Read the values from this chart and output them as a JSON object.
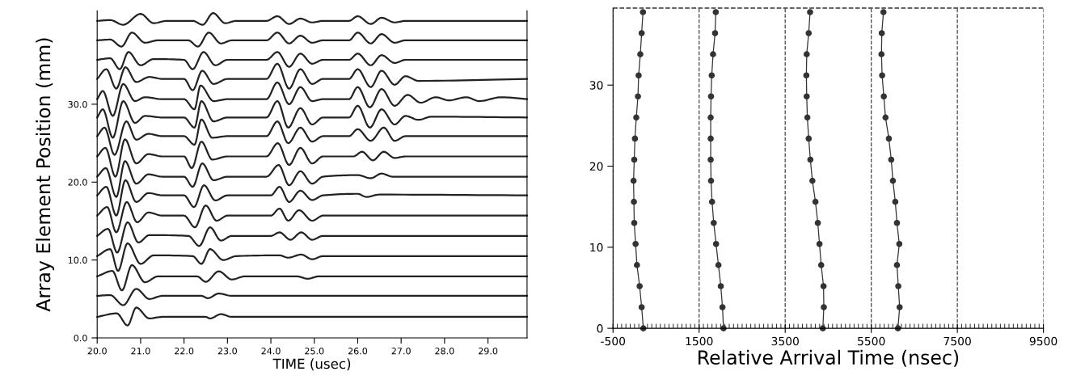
{
  "chart_data": [
    {
      "type": "line",
      "xlabel": "TIME (usec)",
      "ylabel": "Array Element Position (mm)",
      "xlim": [
        20,
        29.9
      ],
      "ylim": [
        0,
        42
      ],
      "xticks": [
        {
          "value": 20,
          "label": "20.0"
        },
        {
          "value": 21,
          "label": "21.0"
        },
        {
          "value": 22,
          "label": "22.0"
        },
        {
          "value": 23,
          "label": "23.0"
        },
        {
          "value": 24,
          "label": "24.0"
        },
        {
          "value": 25,
          "label": "25.0"
        },
        {
          "value": 26,
          "label": "26.0"
        },
        {
          "value": 27,
          "label": "27.0"
        },
        {
          "value": 28,
          "label": "28.0"
        },
        {
          "value": 29,
          "label": "29.0"
        }
      ],
      "yticks": [
        {
          "value": 0,
          "label": "0.0"
        },
        {
          "value": 10,
          "label": "10.0"
        },
        {
          "value": 20,
          "label": "20.0"
        },
        {
          "value": 30,
          "label": "30.0"
        }
      ],
      "grid": false,
      "legend": false,
      "marker": "none",
      "line_style": "solid",
      "series": [
        {
          "color": "#222222",
          "x": [
            20.0,
            20.45,
            20.7,
            20.9,
            21.2,
            21.5,
            22.5,
            22.6,
            22.85,
            23.1,
            29.9
          ],
          "values": [
            2.7,
            3.15,
            1.6,
            3.9,
            2.5,
            2.7,
            2.7,
            2.5,
            3.05,
            2.7,
            2.7
          ]
        },
        {
          "color": "#222222",
          "x": [
            20.0,
            20.3,
            20.6,
            20.9,
            21.2,
            21.5,
            22.4,
            22.55,
            22.8,
            23.1,
            29.9
          ],
          "values": [
            5.4,
            5.5,
            4.2,
            6.3,
            5.0,
            5.4,
            5.4,
            5.1,
            5.7,
            5.4,
            5.4
          ]
        },
        {
          "color": "#222222",
          "x": [
            20.0,
            20.35,
            20.57,
            20.8,
            21.1,
            21.4,
            22.3,
            22.5,
            22.8,
            23.1,
            23.4,
            24.6,
            24.85,
            25.1,
            29.9
          ],
          "values": [
            7.9,
            8.6,
            6.1,
            9.35,
            7.15,
            7.9,
            7.9,
            7.2,
            8.55,
            7.5,
            7.9,
            7.9,
            7.6,
            7.9,
            7.9
          ]
        },
        {
          "color": "#222222",
          "x": [
            20.0,
            20.3,
            20.48,
            20.7,
            21.0,
            21.3,
            22.2,
            22.4,
            22.6,
            22.9,
            23.2,
            24.2,
            24.4,
            24.7,
            24.95,
            25.2,
            29.9
          ],
          "values": [
            10.5,
            11.4,
            8.6,
            12.15,
            9.5,
            10.6,
            10.5,
            9.5,
            11.4,
            10.0,
            10.5,
            10.6,
            10.3,
            10.7,
            10.1,
            10.5,
            10.5
          ]
        },
        {
          "color": "#222222",
          "x": [
            20.0,
            20.25,
            20.46,
            20.7,
            20.95,
            21.2,
            22.1,
            22.35,
            22.6,
            22.85,
            23.1,
            24.0,
            24.2,
            24.45,
            24.7,
            24.95,
            25.2,
            29.9
          ],
          "values": [
            13.1,
            14.0,
            10.95,
            14.85,
            12.25,
            13.2,
            13.1,
            11.8,
            14.2,
            12.5,
            13.1,
            13.1,
            13.55,
            12.6,
            13.55,
            12.6,
            13.1,
            13.1
          ]
        },
        {
          "color": "#222222",
          "x": [
            20.0,
            20.23,
            20.44,
            20.68,
            20.92,
            21.18,
            21.5,
            22.0,
            22.25,
            22.5,
            22.75,
            23.0,
            24.0,
            24.2,
            24.4,
            24.65,
            24.95,
            25.2,
            29.9
          ],
          "values": [
            15.7,
            16.8,
            13.55,
            17.45,
            14.85,
            16.1,
            15.7,
            15.7,
            14.2,
            17.0,
            15.05,
            15.7,
            15.7,
            16.6,
            15.05,
            16.4,
            15.05,
            15.7,
            15.7
          ]
        },
        {
          "color": "#222222",
          "x": [
            20.0,
            20.21,
            20.44,
            20.65,
            20.9,
            21.18,
            21.5,
            22.0,
            22.23,
            22.46,
            22.72,
            23.0,
            24.0,
            24.2,
            24.42,
            24.68,
            24.95,
            25.2,
            26.0,
            26.2,
            26.5,
            29.9
          ],
          "values": [
            18.3,
            19.4,
            15.7,
            20.25,
            17.45,
            18.6,
            18.3,
            18.3,
            16.8,
            19.6,
            17.65,
            18.3,
            18.3,
            19.4,
            17.45,
            18.9,
            17.7,
            18.3,
            18.5,
            18.1,
            18.4,
            18.3
          ]
        },
        {
          "color": "#222222",
          "x": [
            20.0,
            20.2,
            20.44,
            20.64,
            20.9,
            21.18,
            21.5,
            22.0,
            22.2,
            22.42,
            22.68,
            23.0,
            23.9,
            24.18,
            24.42,
            24.68,
            24.95,
            25.2,
            26.0,
            26.3,
            26.55,
            26.8,
            29.9
          ],
          "values": [
            20.7,
            21.8,
            18.1,
            22.7,
            19.8,
            21.0,
            20.7,
            20.7,
            19.4,
            22.4,
            20.25,
            20.7,
            20.7,
            22.2,
            19.6,
            21.4,
            19.8,
            20.7,
            20.9,
            20.5,
            21.1,
            20.7,
            20.7
          ]
        },
        {
          "color": "#222222",
          "x": [
            20.0,
            20.19,
            20.42,
            20.64,
            20.9,
            21.18,
            21.5,
            22.0,
            22.18,
            22.4,
            22.65,
            23.0,
            23.9,
            24.16,
            24.42,
            24.68,
            24.95,
            25.2,
            25.9,
            26.1,
            26.35,
            26.6,
            26.85,
            27.1,
            29.9
          ],
          "values": [
            23.3,
            24.4,
            20.7,
            25.5,
            22.4,
            23.6,
            23.3,
            23.3,
            21.8,
            25.2,
            22.9,
            23.3,
            23.3,
            25.0,
            22.2,
            24.4,
            22.4,
            23.3,
            23.3,
            23.9,
            22.8,
            23.9,
            23.1,
            23.3,
            23.3
          ]
        },
        {
          "color": "#222222",
          "x": [
            20.0,
            20.17,
            20.4,
            20.67,
            20.9,
            21.18,
            21.5,
            22.0,
            22.24,
            22.4,
            22.65,
            23.0,
            23.9,
            24.15,
            24.4,
            24.68,
            24.95,
            25.2,
            25.8,
            26.0,
            26.3,
            26.6,
            26.85,
            27.1,
            29.9
          ],
          "values": [
            25.9,
            27.0,
            23.5,
            27.8,
            25.45,
            26.2,
            25.9,
            25.9,
            24.8,
            28.05,
            25.7,
            25.9,
            25.9,
            27.8,
            25.0,
            27.0,
            25.2,
            25.9,
            25.9,
            26.8,
            25.3,
            27.0,
            25.3,
            25.9,
            25.9
          ]
        },
        {
          "color": "#222222",
          "x": [
            20.0,
            20.13,
            20.36,
            20.6,
            20.87,
            21.1,
            21.5,
            22.0,
            22.24,
            22.4,
            22.68,
            23.0,
            23.9,
            24.15,
            24.4,
            24.68,
            24.95,
            25.2,
            25.8,
            26.0,
            26.28,
            26.55,
            26.85,
            27.1,
            27.4,
            27.7,
            29.9
          ],
          "values": [
            28.3,
            29.35,
            25.7,
            30.4,
            27.6,
            28.5,
            28.3,
            28.3,
            27.0,
            30.4,
            27.8,
            28.3,
            28.3,
            30.4,
            27.0,
            29.5,
            27.4,
            28.3,
            28.3,
            29.8,
            27.0,
            29.35,
            27.4,
            28.5,
            28.0,
            28.4,
            28.3
          ]
        },
        {
          "color": "#222222",
          "x": [
            20.0,
            20.13,
            20.36,
            20.6,
            20.87,
            21.1,
            21.5,
            22.0,
            22.24,
            22.38,
            22.68,
            23.0,
            23.9,
            24.15,
            24.42,
            24.68,
            24.95,
            25.2,
            25.8,
            26.0,
            26.28,
            26.55,
            26.85,
            27.15,
            27.45,
            27.8,
            28.1,
            28.5,
            28.8,
            29.3,
            29.9
          ],
          "values": [
            30.65,
            31.7,
            28.5,
            32.6,
            30.4,
            30.9,
            30.65,
            30.65,
            29.35,
            32.4,
            30.4,
            30.65,
            30.65,
            32.8,
            30.0,
            32.2,
            30.4,
            30.65,
            30.65,
            32.2,
            29.6,
            31.95,
            29.8,
            31.2,
            30.2,
            30.9,
            30.5,
            30.9,
            30.4,
            30.9,
            30.65
          ]
        },
        {
          "color": "#222222",
          "x": [
            20.0,
            20.21,
            20.44,
            20.65,
            20.9,
            21.2,
            21.5,
            22.0,
            22.2,
            22.42,
            22.68,
            23.0,
            23.9,
            24.15,
            24.42,
            24.68,
            24.95,
            25.2,
            25.8,
            26.0,
            26.3,
            26.55,
            26.85,
            27.1,
            27.4,
            29.9
          ],
          "values": [
            33.25,
            34.5,
            32.0,
            34.75,
            32.85,
            33.5,
            33.25,
            33.25,
            31.8,
            34.3,
            32.6,
            33.25,
            33.25,
            35.2,
            32.0,
            34.5,
            32.6,
            33.25,
            33.25,
            34.5,
            32.2,
            34.3,
            32.5,
            33.6,
            33.0,
            33.25
          ]
        },
        {
          "color": "#222222",
          "x": [
            20.0,
            20.3,
            20.52,
            20.72,
            21.0,
            21.3,
            22.0,
            22.2,
            22.45,
            22.72,
            23.0,
            23.9,
            24.15,
            24.42,
            24.68,
            24.95,
            25.2,
            25.8,
            26.0,
            26.3,
            26.55,
            26.85,
            27.1,
            29.9
          ],
          "values": [
            35.7,
            35.9,
            34.5,
            36.7,
            35.0,
            35.8,
            35.7,
            34.5,
            36.7,
            35.0,
            35.7,
            35.7,
            36.7,
            34.8,
            36.5,
            35.2,
            35.7,
            35.7,
            36.5,
            35.0,
            36.3,
            35.3,
            35.7,
            35.7
          ]
        },
        {
          "color": "#222222",
          "x": [
            20.0,
            20.3,
            20.56,
            20.8,
            21.1,
            21.4,
            22.1,
            22.32,
            22.57,
            22.85,
            23.1,
            23.9,
            24.15,
            24.42,
            24.68,
            24.95,
            25.2,
            25.8,
            26.0,
            26.3,
            26.55,
            26.85,
            27.1,
            29.9
          ],
          "values": [
            38.2,
            38.3,
            37.4,
            39.2,
            37.9,
            38.2,
            38.2,
            37.4,
            39.2,
            37.8,
            38.2,
            38.2,
            39.2,
            37.8,
            38.8,
            37.9,
            38.2,
            38.2,
            39.2,
            37.8,
            39.0,
            37.9,
            38.2,
            38.2
          ]
        },
        {
          "color": "#222222",
          "x": [
            20.0,
            20.3,
            20.6,
            21.0,
            21.3,
            21.6,
            22.2,
            22.43,
            22.67,
            22.95,
            23.2,
            23.9,
            24.15,
            24.42,
            24.68,
            24.95,
            25.2,
            25.8,
            26.0,
            26.3,
            26.55,
            26.85,
            27.1,
            29.9
          ],
          "values": [
            40.7,
            40.8,
            40.2,
            41.6,
            40.4,
            40.7,
            40.7,
            40.2,
            41.7,
            40.4,
            40.7,
            40.7,
            41.3,
            40.3,
            41.0,
            40.5,
            40.7,
            40.7,
            41.3,
            40.3,
            41.1,
            40.5,
            40.7,
            40.7
          ]
        }
      ]
    },
    {
      "type": "line",
      "xlabel": "Relative Arrival Time (nsec)",
      "xlim": [
        -500,
        9500
      ],
      "ylim": [
        0,
        39.5
      ],
      "xticks": [
        -500,
        1500,
        3500,
        5500,
        7500,
        9500
      ],
      "yticks": [
        0,
        10,
        20,
        30
      ],
      "grid": "x",
      "legend": false,
      "marker": "circle",
      "line_style": "solid",
      "ref_lines": [
        {
          "axis": "y",
          "value": 39.5,
          "line_style": "dashed",
          "color": "#333333"
        }
      ],
      "series": [
        {
          "color": "#333333",
          "x": [
            204,
            165,
            118,
            56,
            24,
            -7,
            -15,
            -23,
            -7,
            9,
            40,
            79,
            95,
            134,
            165,
            196
          ],
          "values": [
            0,
            2.6,
            5.2,
            7.8,
            10.4,
            13,
            15.6,
            18.2,
            20.8,
            23.4,
            26,
            28.6,
            31.2,
            33.8,
            36.4,
            39
          ]
        },
        {
          "color": "#333333",
          "x": [
            2067,
            2043,
            2004,
            1949,
            1894,
            1840,
            1801,
            1777,
            1769,
            1769,
            1769,
            1777,
            1793,
            1824,
            1871,
            1887
          ],
          "values": [
            0,
            2.6,
            5.2,
            7.8,
            10.4,
            13,
            15.6,
            18.2,
            20.8,
            23.4,
            26,
            28.6,
            31.2,
            33.8,
            36.4,
            39
          ]
        },
        {
          "color": "#333333",
          "x": [
            4375,
            4398,
            4391,
            4336,
            4297,
            4258,
            4203,
            4132,
            4085,
            4046,
            4015,
            4000,
            3992,
            4000,
            4046,
            4078
          ],
          "values": [
            0,
            2.6,
            5.2,
            7.8,
            10.4,
            13,
            15.6,
            18.2,
            20.8,
            23.4,
            26,
            28.6,
            31.2,
            33.8,
            36.4,
            39
          ]
        },
        {
          "color": "#333333",
          "x": [
            6120,
            6159,
            6128,
            6097,
            6151,
            6097,
            6058,
            6003,
            5964,
            5909,
            5831,
            5791,
            5752,
            5737,
            5744,
            5783
          ],
          "values": [
            0,
            2.6,
            5.2,
            7.8,
            10.4,
            13,
            15.6,
            18.2,
            20.8,
            23.4,
            26,
            28.6,
            31.2,
            33.8,
            36.4,
            39
          ]
        }
      ]
    }
  ]
}
